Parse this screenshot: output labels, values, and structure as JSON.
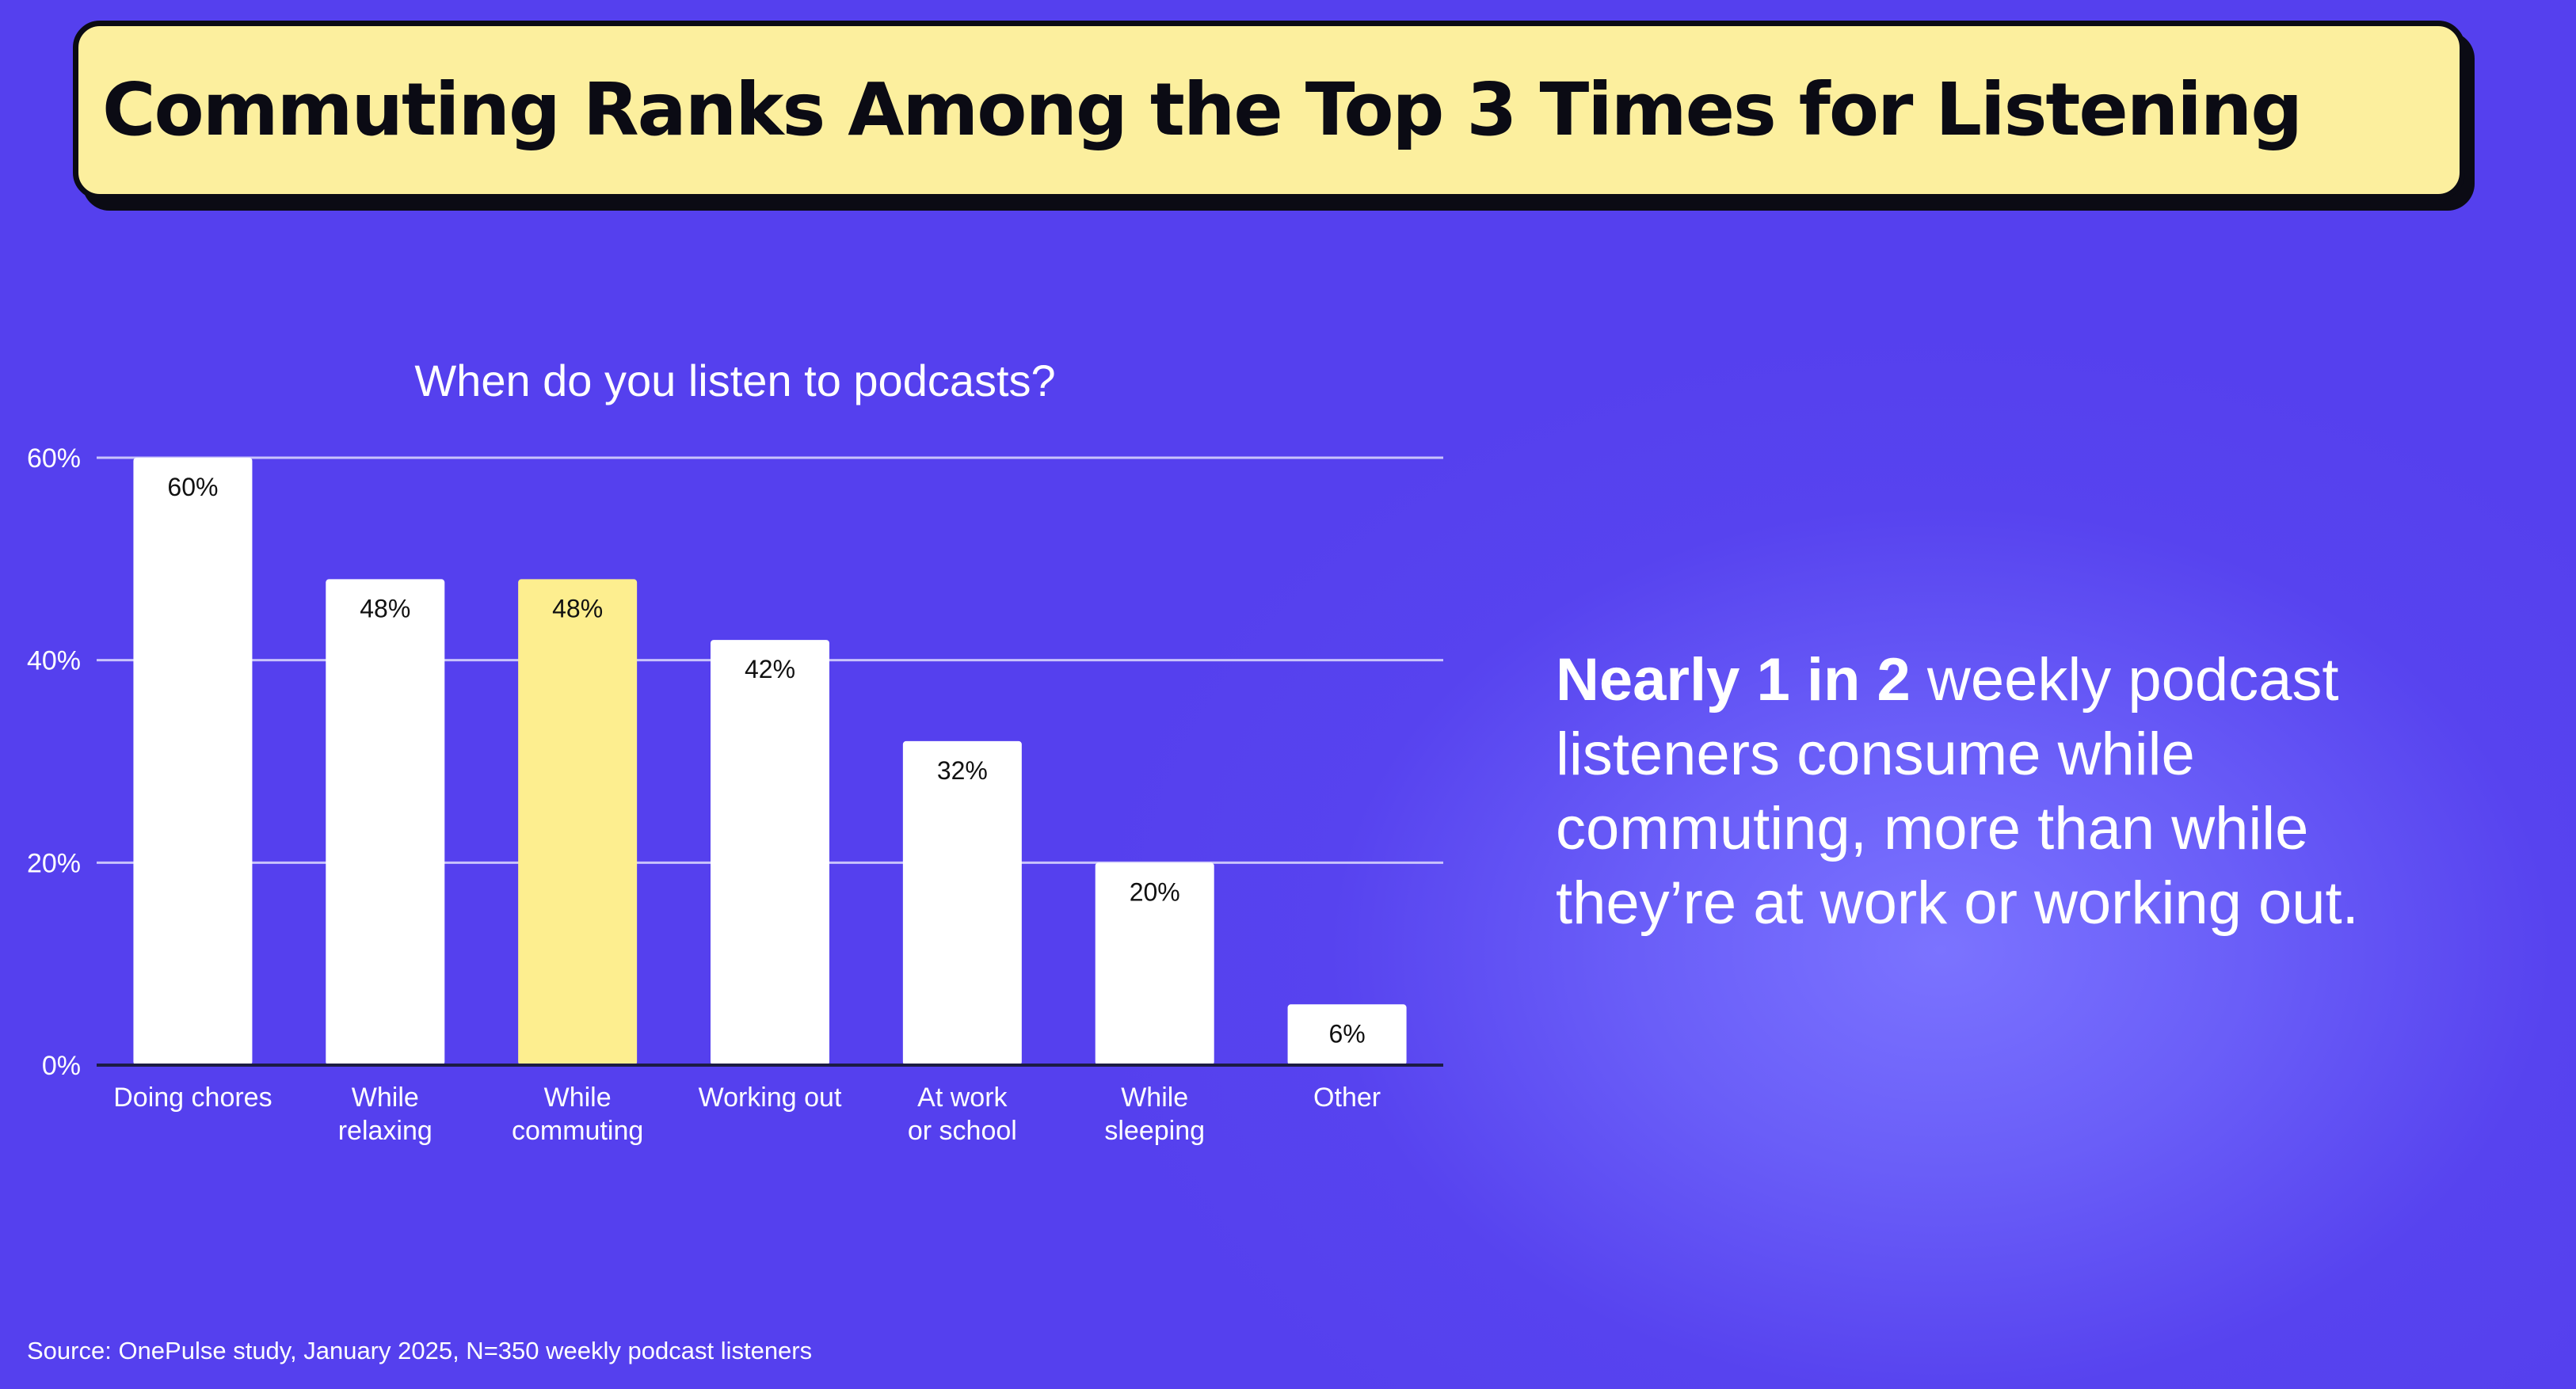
{
  "header": {
    "title": "Commuting Ranks Among the Top 3 Times for Listening"
  },
  "chart_data": {
    "type": "bar",
    "title": "When do you listen to podcasts?",
    "categories": [
      "Doing chores",
      "While relaxing",
      "While commuting",
      "Working out",
      "At work or school",
      "While sleeping",
      "Other"
    ],
    "values": [
      60,
      48,
      48,
      42,
      32,
      20,
      6
    ],
    "value_labels": [
      "60%",
      "48%",
      "48%",
      "42%",
      "32%",
      "20%",
      "6%"
    ],
    "highlight_index": 2,
    "ylim": [
      0,
      60
    ],
    "yticks": [
      0,
      20,
      40,
      60
    ],
    "ytick_labels": [
      "0%",
      "20%",
      "40%",
      "60%"
    ],
    "grid": true,
    "colors": {
      "bar": "#ffffff",
      "highlight": "#fdee8f",
      "gridline": "#c9c3fb",
      "axis": "#1c1c44",
      "label_text": "#ffffff",
      "value_text": "#111111"
    }
  },
  "insight": {
    "bold": "Nearly 1 in 2",
    "rest": " weekly podcast listeners consume while commuting, more than while they’re at work or working out."
  },
  "footer": {
    "source": "Source: OnePulse study, January 2025, N=350 weekly podcast listeners"
  }
}
